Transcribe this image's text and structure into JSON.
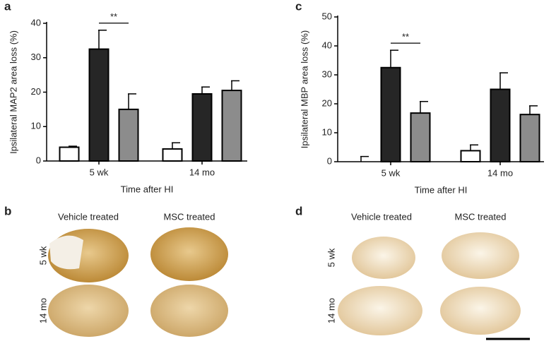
{
  "chart_data": [
    {
      "type": "bar",
      "label": "a",
      "ylabel": "Ipsilateral MAP2 area loss (%)",
      "xlabel": "Time after HI",
      "categories": [
        "5 wk",
        "14 mo"
      ],
      "series": [
        {
          "color": "#ffffff",
          "values": [
            4,
            3.5
          ],
          "errors": [
            0.3,
            1.8
          ]
        },
        {
          "color": "#262626",
          "values": [
            32.5,
            19.5
          ],
          "errors": [
            5.5,
            2
          ]
        },
        {
          "color": "#8c8c8c",
          "values": [
            15,
            20.5
          ],
          "errors": [
            4.5,
            2.8
          ]
        }
      ],
      "annotation": "**",
      "ylim": [
        0,
        40
      ],
      "yticks": [
        0,
        10,
        20,
        30,
        40
      ]
    },
    {
      "type": "bar",
      "label": "c",
      "ylabel": "Ipsilateral MBP area loss (%)",
      "xlabel": "Time after HI",
      "categories": [
        "5 wk",
        "14 mo"
      ],
      "series": [
        {
          "color": "#ffffff",
          "values": [
            0,
            3.8
          ],
          "errors": [
            1.8,
            2
          ]
        },
        {
          "color": "#262626",
          "values": [
            32.5,
            25
          ],
          "errors": [
            6,
            5.7
          ]
        },
        {
          "color": "#8c8c8c",
          "values": [
            16.8,
            16.3
          ],
          "errors": [
            4,
            3
          ]
        }
      ],
      "annotation": "**",
      "ylim": [
        0,
        50
      ],
      "yticks": [
        0,
        10,
        20,
        30,
        40,
        50
      ]
    }
  ],
  "panels": [
    {
      "label": "b",
      "columns": [
        "Vehicle treated",
        "MSC treated"
      ],
      "rows": [
        "5 wk",
        "14 mo"
      ]
    },
    {
      "label": "d",
      "columns": [
        "Vehicle treated",
        "MSC treated"
      ],
      "rows": [
        "5 wk",
        "14 mo"
      ]
    }
  ]
}
